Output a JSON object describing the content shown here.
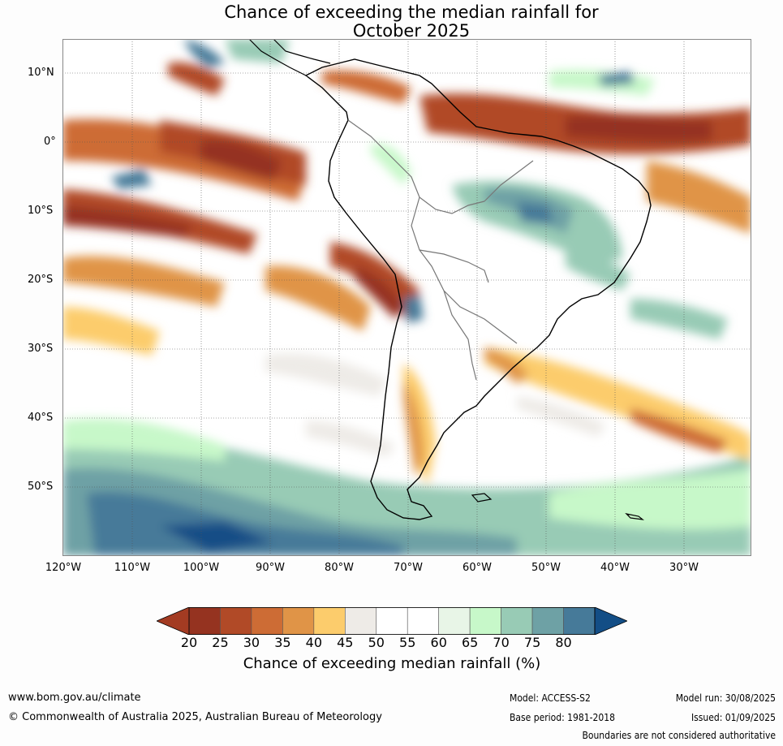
{
  "title_line1": "Chance of exceeding the median rainfall for",
  "title_line2": "October 2025",
  "lat_labels": [
    "10°N",
    "0°",
    "10°S",
    "20°S",
    "30°S",
    "40°S",
    "50°S"
  ],
  "lon_labels": [
    "120°W",
    "110°W",
    "100°W",
    "90°W",
    "80°W",
    "70°W",
    "60°W",
    "50°W",
    "40°W",
    "30°W"
  ],
  "colorbar": {
    "ticks": [
      "20",
      "25",
      "30",
      "35",
      "40",
      "45",
      "50",
      "55",
      "60",
      "65",
      "70",
      "75",
      "80"
    ],
    "colors": [
      "#953320",
      "#b14a27",
      "#cd6c35",
      "#e09447",
      "#fccc6c",
      "#eeebe7",
      "#ffffff",
      "#ffffff",
      "#e8f5e7",
      "#c7f8c9",
      "#98cbb5",
      "#6ea1a5",
      "#467a99"
    ],
    "under_color": "#a33b22",
    "over_color": "#134e86",
    "title": "Chance of exceeding median rainfall (%)"
  },
  "footer": {
    "url": "www.bom.gov.au/climate",
    "copyright": "© Commonwealth of Australia 2025, Australian Bureau of Meteorology",
    "model": "Model: ACCESS-S2",
    "base_period": "Base period: 1981-2018",
    "model_run": "Model run: 30/08/2025",
    "issued": "Issued: 01/09/2025",
    "disclaimer": "Boundaries are not considered authoritative"
  }
}
